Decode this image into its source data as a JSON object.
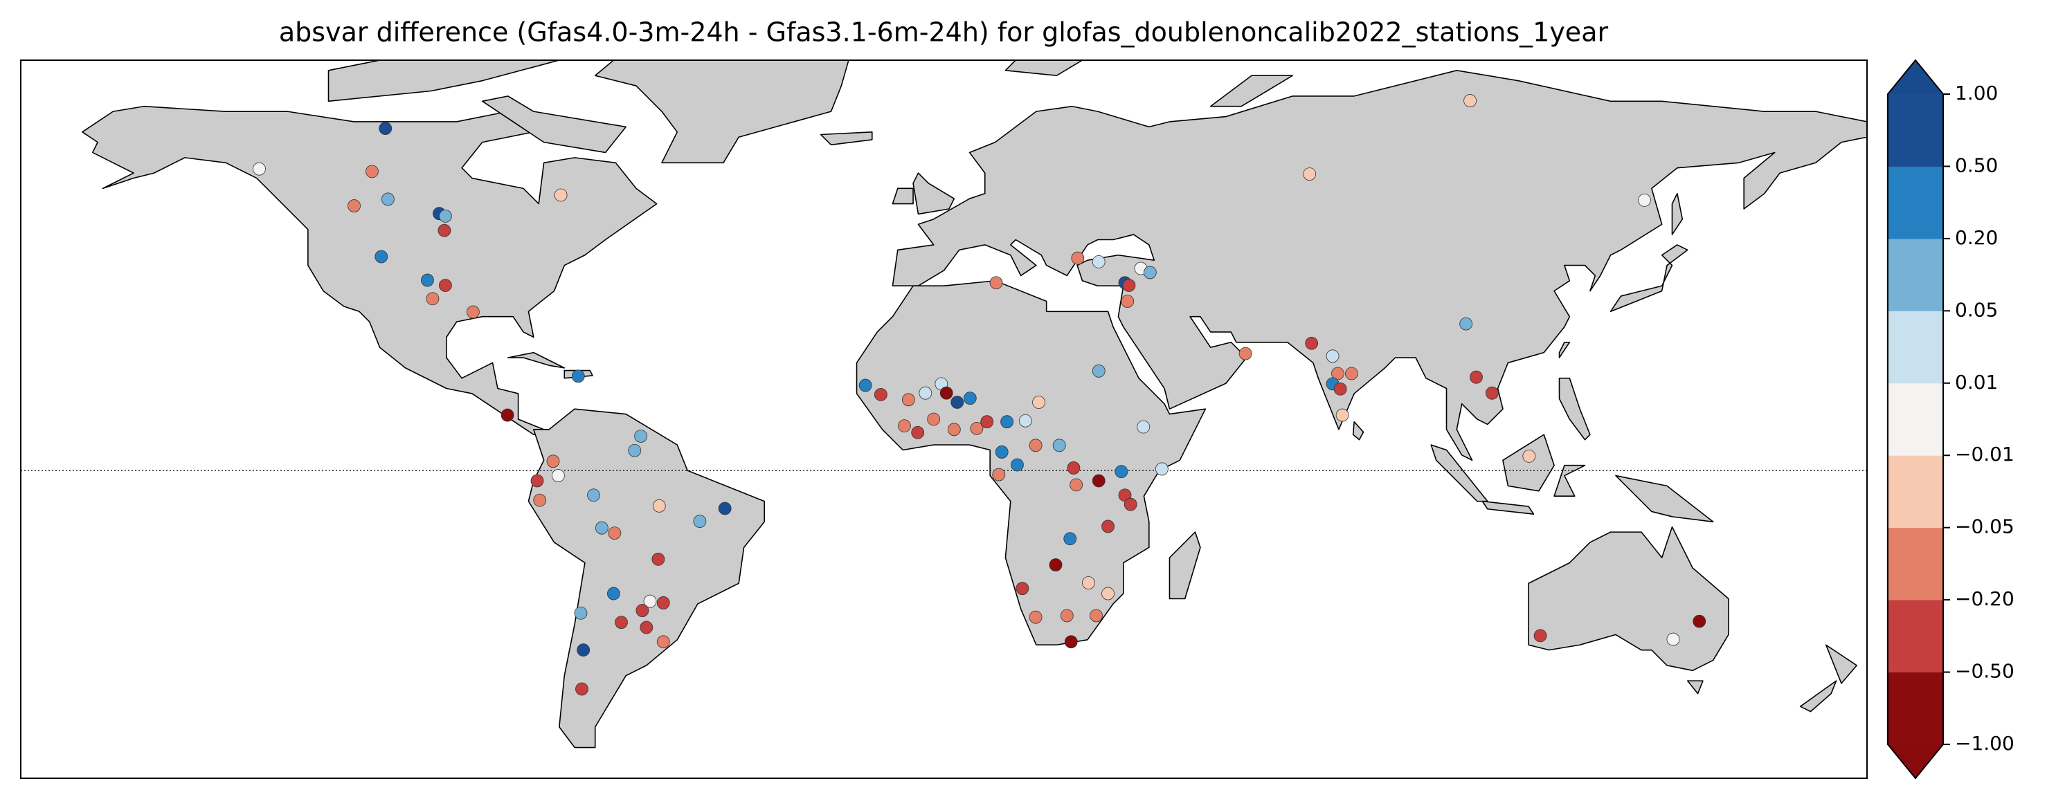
{
  "chart_data": {
    "type": "scatter",
    "title": "absvar difference (Gfas4.0-3m-24h - Gfas3.1-6m-24h) for glofas_doublenoncalib2022_stations_1year",
    "xlim": [
      -180,
      180
    ],
    "ylim": [
      -60,
      80
    ],
    "x": [
      -108.9,
      -133.5,
      -111.5,
      -108.4,
      -115,
      -98.4,
      -97.2,
      -97.4,
      -74.7,
      -109.7,
      -100.7,
      -97.2,
      -99.7,
      -91.8,
      -71.3,
      -85.1,
      -59.1,
      -60.3,
      -76.2,
      -75.2,
      -79.3,
      -78.8,
      -68.3,
      -55.5,
      -42.7,
      -47.6,
      -66.7,
      -64.2,
      -55.7,
      -57.3,
      -54.7,
      -64.4,
      -58.8,
      -62.9,
      -58.0,
      -70.3,
      -70.8,
      -70.6,
      -54.7,
      26.1,
      30.2,
      35.3,
      38.4,
      40.2,
      36.1,
      35.8,
      10.2,
      102.6,
      71.3,
      136.6,
      101.8,
      71.7,
      75.8,
      79.5,
      76.8,
      75.8,
      77.3,
      77.7,
      103.8,
      106.9,
      114.1,
      58.8,
      147.3,
      142.2,
      116.3,
      -15.3,
      -12.3,
      -6.9,
      -3.6,
      -0.5,
      0.5,
      2.6,
      5.1,
      -7.7,
      -5.1,
      -2.0,
      2.0,
      6.4,
      8.4,
      12.3,
      15.9,
      18.5,
      11.3,
      14.3,
      17.9,
      22.5,
      30.2,
      38.9,
      25.3,
      25.8,
      30.2,
      34.6,
      42.5,
      10.7,
      24.6,
      21.8,
      28.2,
      32.0,
      17.9,
      24.0,
      29.7,
      24.8,
      15.3,
      35.3,
      32.0,
      36.4
    ],
    "y": [
      66.7,
      58.8,
      58.3,
      52.9,
      51.6,
      50.1,
      49.6,
      46.8,
      53.7,
      41.7,
      37.1,
      36.1,
      33.5,
      30.9,
      18.4,
      10.8,
      6.7,
      3.9,
      1.8,
      -1.0,
      -2.0,
      -5.8,
      -4.8,
      -6.9,
      -7.4,
      -9.9,
      -11.2,
      -12.2,
      -17.3,
      -25.5,
      -25.8,
      -24.0,
      -27.3,
      -29.6,
      -30.6,
      -35.0,
      -27.8,
      -42.6,
      -33.4,
      41.4,
      40.7,
      36.6,
      39.4,
      38.6,
      36.1,
      33.0,
      36.6,
      72.1,
      57.8,
      52.7,
      28.6,
      24.8,
      22.3,
      18.9,
      18.9,
      16.9,
      15.9,
      10.8,
      18.2,
      15.1,
      2.8,
      22.8,
      -29.4,
      -32.9,
      -32.2,
      16.6,
      14.8,
      13.8,
      15.1,
      16.9,
      15.1,
      13.3,
      14.1,
      8.7,
      7.4,
      10.0,
      8.0,
      8.2,
      9.5,
      9.5,
      9.7,
      13.3,
      3.6,
      1.1,
      4.9,
      4.9,
      19.4,
      8.5,
      0.5,
      -2.8,
      -2.0,
      -0.2,
      0.3,
      -0.8,
      -13.3,
      -18.4,
      -21.9,
      -24.0,
      -28.6,
      -28.3,
      -28.3,
      -33.4,
      -23.0,
      -4.8,
      -10.9,
      -6.6
    ],
    "values": [
      0.7,
      0,
      -0.1,
      0.1,
      -0.1,
      0.7,
      0.1,
      -0.3,
      -0.03,
      0.3,
      0.3,
      -0.3,
      -0.1,
      -0.1,
      0.3,
      -0.7,
      0.1,
      0.1,
      -0.1,
      0,
      -0.3,
      -0.1,
      0.1,
      -0.03,
      0.7,
      0.1,
      0.1,
      -0.1,
      -0.3,
      0,
      -0.3,
      0.3,
      -0.3,
      -0.3,
      -0.3,
      0.7,
      0.1,
      -0.3,
      -0.1,
      -0.1,
      0.03,
      0.7,
      0,
      0.1,
      -0.3,
      -0.1,
      -0.1,
      -0.03,
      -0.03,
      0,
      0.1,
      -0.3,
      0.03,
      -0.1,
      -0.1,
      0.3,
      -0.3,
      -0.03,
      -0.3,
      -0.3,
      -0.03,
      -0.1,
      -0.7,
      0,
      -0.3,
      0.3,
      -0.3,
      -0.1,
      0.03,
      0.03,
      -0.7,
      0.7,
      0.3,
      -0.1,
      -0.3,
      -0.1,
      -0.1,
      -0.1,
      -0.3,
      0.3,
      0.03,
      -0.03,
      0.3,
      0.3,
      -0.1,
      0.1,
      0.1,
      0.03,
      -0.3,
      -0.1,
      -0.7,
      0.3,
      0.03,
      -0.1,
      0.3,
      -0.7,
      -0.03,
      -0.03,
      -0.1,
      -0.1,
      -0.1,
      -0.7,
      -0.3,
      -0.3,
      -0.3,
      -0.3
    ],
    "colorbar": {
      "ticks": [
        {
          "value": -1,
          "label": "−1.00"
        },
        {
          "value": -0.5,
          "label": "−0.50"
        },
        {
          "value": -0.2,
          "label": "−0.20"
        },
        {
          "value": -0.05,
          "label": "−0.05"
        },
        {
          "value": -0.01,
          "label": "−0.01"
        },
        {
          "value": 0.01,
          "label": "0.01"
        },
        {
          "value": 0.05,
          "label": "0.05"
        },
        {
          "value": 0.2,
          "label": "0.20"
        },
        {
          "value": 0.5,
          "label": "0.50"
        },
        {
          "value": 1,
          "label": "1.00"
        }
      ],
      "colors": [
        "#8c0b0d",
        "#c43f3e",
        "#e58068",
        "#f8c9b1",
        "#f4f3f2",
        "#c9e0ee",
        "#76b1d6",
        "#2580c1",
        "#1b4d92"
      ],
      "extend_colors": [
        "#870a0c",
        "#1a4a8e"
      ]
    }
  }
}
